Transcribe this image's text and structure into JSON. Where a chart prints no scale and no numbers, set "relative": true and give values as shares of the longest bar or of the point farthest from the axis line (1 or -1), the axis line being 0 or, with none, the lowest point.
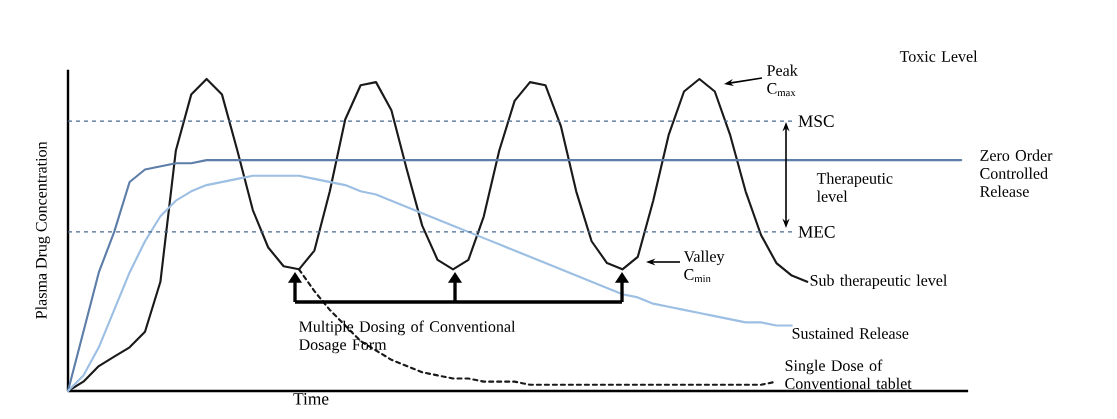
{
  "chart_data": {
    "type": "line",
    "relative": true,
    "marker": "none",
    "xlabel": "Time",
    "ylabel": "Plasma Drug Concentration",
    "categories": [
      null,
      null,
      null,
      null,
      null,
      null,
      null,
      null,
      null,
      null,
      null,
      null,
      null,
      null,
      null,
      null,
      null,
      null,
      null,
      null,
      null,
      null,
      null,
      null,
      null,
      null,
      null,
      null,
      null,
      null,
      null,
      null,
      null,
      null,
      null,
      null,
      null,
      null,
      null,
      null,
      null,
      null,
      null,
      null,
      null,
      null,
      null,
      null,
      null,
      null,
      null,
      null,
      null,
      null,
      null,
      null,
      null,
      null,
      null
    ],
    "series": [
      {
        "color": "#1a1a1a",
        "line_style": "solid",
        "values": [
          0,
          0.03,
          0.08,
          0.11,
          0.14,
          0.19,
          0.35,
          0.77,
          0.95,
          1,
          0.95,
          0.77,
          0.58,
          0.46,
          0.4,
          0.39,
          0.45,
          0.64,
          0.87,
          0.98,
          0.99,
          0.9,
          0.71,
          0.53,
          0.42,
          0.39,
          0.42,
          0.56,
          0.77,
          0.93,
          0.99,
          0.98,
          0.85,
          0.64,
          0.48,
          0.41,
          0.39,
          0.43,
          0.61,
          0.82,
          0.96,
          1,
          0.96,
          0.82,
          0.64,
          0.5,
          0.41,
          0.37,
          0.35,
          null,
          null,
          null,
          null,
          null,
          null,
          null,
          null,
          null,
          null
        ]
      },
      {
        "name": "Zero Order Controlled Release",
        "color": "#5d7ea8",
        "line_style": "solid",
        "values": [
          0,
          0.19,
          0.38,
          0.51,
          0.67,
          0.71,
          0.72,
          0.73,
          0.73,
          0.74,
          0.74,
          0.74,
          0.74,
          0.74,
          0.74,
          0.74,
          0.74,
          0.74,
          0.74,
          0.74,
          0.74,
          0.74,
          0.74,
          0.74,
          0.74,
          0.74,
          0.74,
          0.74,
          0.74,
          0.74,
          0.74,
          0.74,
          0.74,
          0.74,
          0.74,
          0.74,
          0.74,
          0.74,
          0.74,
          0.74,
          0.74,
          0.74,
          0.74,
          0.74,
          0.74,
          0.74,
          0.74,
          0.74,
          0.74,
          0.74,
          0.74,
          0.74,
          0.74,
          0.74,
          0.74,
          0.74,
          0.74,
          0.74,
          0.74
        ]
      },
      {
        "name": "Sustained Release",
        "color": "#9cbfe3",
        "line_style": "solid",
        "values": [
          0,
          0.05,
          0.14,
          0.26,
          0.38,
          0.48,
          0.56,
          0.61,
          0.64,
          0.66,
          0.67,
          0.68,
          0.69,
          0.69,
          0.69,
          0.69,
          0.68,
          0.67,
          0.66,
          0.64,
          0.63,
          0.61,
          0.59,
          0.57,
          0.55,
          0.53,
          0.51,
          0.49,
          0.47,
          0.45,
          0.43,
          0.41,
          0.39,
          0.37,
          0.35,
          0.33,
          0.31,
          0.3,
          0.28,
          0.27,
          0.26,
          0.25,
          0.24,
          0.23,
          0.22,
          0.22,
          0.21,
          0.21,
          null,
          null,
          null,
          null,
          null,
          null,
          null,
          null,
          null,
          null,
          null
        ]
      },
      {
        "name": "Single Dose of Conventional tablet",
        "color": "#1a1a1a",
        "line_style": "dashed",
        "values": [
          null,
          null,
          null,
          null,
          null,
          null,
          null,
          null,
          null,
          null,
          null,
          null,
          null,
          null,
          null,
          0.39,
          0.32,
          0.26,
          0.21,
          0.16,
          0.13,
          0.1,
          0.08,
          0.06,
          0.05,
          0.04,
          0.04,
          0.03,
          0.03,
          0.03,
          0.02,
          0.02,
          0.02,
          0.02,
          0.02,
          0.02,
          0.02,
          0.02,
          0.02,
          0.02,
          0.02,
          0.02,
          0.02,
          0.02,
          0.02,
          0.02,
          0.03,
          null,
          null,
          null,
          null,
          null,
          null,
          null,
          null,
          null,
          null,
          null,
          null
        ]
      }
    ],
    "ref_lines": [
      {
        "axis": "y",
        "value": 0.865,
        "label": "MSC",
        "color": "#4a6a90",
        "line_style": "dashed"
      },
      {
        "axis": "y",
        "value": 0.51,
        "label": "MEC",
        "color": "#4a6a90",
        "line_style": "dashed"
      }
    ],
    "annotations": [
      "Toxic Level",
      "Peak C$_{max}$",
      "Therapeutic level",
      "Valley C$_{min}$",
      "Sub therapeutic level",
      "Multiple Dosing of Conventional Dosage Form"
    ]
  }
}
